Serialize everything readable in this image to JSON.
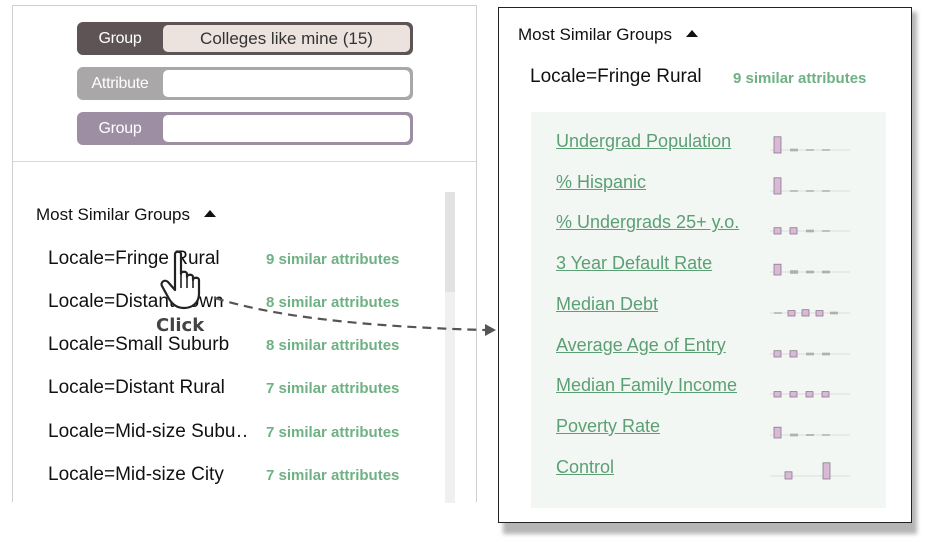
{
  "filters": {
    "group1": {
      "tag": "Group",
      "value": "Colleges like mine (15)"
    },
    "attribute": {
      "tag": "Attribute",
      "value": ""
    },
    "group2": {
      "tag": "Group",
      "value": ""
    }
  },
  "left": {
    "title": "Most Similar Groups",
    "groups": [
      {
        "label": "Locale=Fringe Rural",
        "count": "9 similar attributes"
      },
      {
        "label": "Locale=Distant Town",
        "count": "8 similar attributes"
      },
      {
        "label": "Locale=Small Suburb",
        "count": "8 similar attributes"
      },
      {
        "label": "Locale=Distant Rural",
        "count": "7 similar attributes"
      },
      {
        "label": "Locale=Mid-size Subu…",
        "count": "7 similar attributes"
      },
      {
        "label": "Locale=Mid-size City",
        "count": "7 similar attributes"
      }
    ]
  },
  "annotation": {
    "click": "Click"
  },
  "right": {
    "title": "Most Similar Groups",
    "group_label": "Locale=Fringe Rural",
    "group_count": "9 similar attributes",
    "attributes": [
      {
        "label": "Undergrad Population",
        "bars": [
          0.9,
          0.15,
          0.05,
          0.05
        ]
      },
      {
        "label": "% Hispanic",
        "bars": [
          0.9,
          0.05,
          0.05,
          0.05
        ]
      },
      {
        "label": "% Undergrads 25+ y.o.",
        "bars": [
          0.35,
          0.35,
          0.15,
          0.05
        ]
      },
      {
        "label": "3 Year Default Rate",
        "bars": [
          0.6,
          0.2,
          0.15,
          0.15
        ]
      },
      {
        "label": "Median Debt",
        "bars": [
          0.05,
          0.3,
          0.35,
          0.3,
          0.15
        ]
      },
      {
        "label": "Average Age of Entry",
        "bars": [
          0.35,
          0.35,
          0.15,
          0.15
        ]
      },
      {
        "label": "Median Family Income",
        "bars": [
          0.3,
          0.3,
          0.3,
          0.3
        ]
      },
      {
        "label": "Poverty Rate",
        "bars": [
          0.6,
          0.15,
          0.1,
          0.05
        ]
      },
      {
        "label": "Control",
        "bars": [
          0.4,
          0.9
        ]
      }
    ]
  },
  "colors": {
    "accent_green": "#6fb184",
    "link_green": "#5c9f74",
    "bar_pink": "#d9b8d8",
    "bar_gray": "#999999"
  }
}
